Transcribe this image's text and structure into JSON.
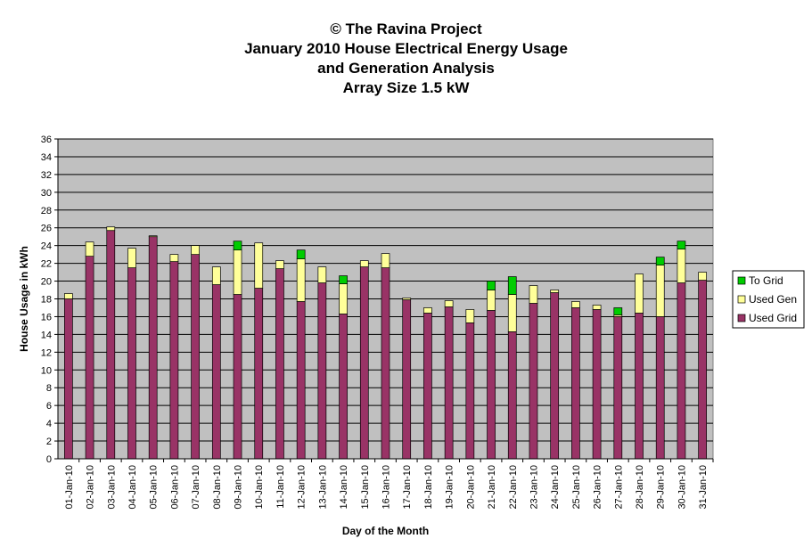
{
  "chart_data": {
    "type": "bar",
    "stacked": true,
    "title_lines": [
      "© The Ravina Project",
      "January 2010 House Electrical Energy Usage",
      "and Generation Analysis",
      "Array Size 1.5 kW"
    ],
    "xlabel": "Day of the Month",
    "ylabel": "House Usage in kWh",
    "ylim": [
      0,
      36
    ],
    "ytick_step": 2,
    "grid": true,
    "legend_position": "right",
    "categories": [
      "01-Jan-10",
      "02-Jan-10",
      "03-Jan-10",
      "04-Jan-10",
      "05-Jan-10",
      "06-Jan-10",
      "07-Jan-10",
      "08-Jan-10",
      "09-Jan-10",
      "10-Jan-10",
      "11-Jan-10",
      "12-Jan-10",
      "13-Jan-10",
      "14-Jan-10",
      "15-Jan-10",
      "16-Jan-10",
      "17-Jan-10",
      "18-Jan-10",
      "19-Jan-10",
      "20-Jan-10",
      "21-Jan-10",
      "22-Jan-10",
      "23-Jan-10",
      "24-Jan-10",
      "25-Jan-10",
      "26-Jan-10",
      "27-Jan-10",
      "28-Jan-10",
      "29-Jan-10",
      "30-Jan-10",
      "31-Jan-10"
    ],
    "series": [
      {
        "name": "Used Grid",
        "color": "#993366",
        "values": [
          18.0,
          22.8,
          25.7,
          21.5,
          25.0,
          22.2,
          23.0,
          19.6,
          18.5,
          19.2,
          21.4,
          17.7,
          19.8,
          16.3,
          21.6,
          21.5,
          17.9,
          16.4,
          17.1,
          15.3,
          16.7,
          14.3,
          17.5,
          18.7,
          17.0,
          16.8,
          16.0,
          16.4,
          16.0,
          19.8,
          20.1
        ]
      },
      {
        "name": "Used Gen",
        "color": "#FFFF99",
        "values": [
          0.6,
          1.6,
          0.4,
          2.2,
          0.1,
          0.8,
          1.0,
          2.0,
          5.0,
          5.1,
          0.9,
          4.8,
          1.8,
          3.4,
          0.7,
          1.6,
          0.2,
          0.6,
          0.7,
          1.5,
          2.3,
          4.2,
          2.0,
          0.3,
          0.7,
          0.5,
          0.2,
          4.4,
          5.8,
          3.8,
          0.9
        ]
      },
      {
        "name": "To Grid",
        "color": "#00CC00",
        "values": [
          0,
          0,
          0,
          0,
          0,
          0,
          0,
          0,
          1.0,
          0,
          0,
          1.0,
          0,
          0.9,
          0,
          0,
          0,
          0,
          0,
          0,
          1.0,
          2.0,
          0,
          0,
          0,
          0,
          0.8,
          0,
          0.9,
          0.9,
          0
        ]
      }
    ],
    "legend_order": [
      "To Grid",
      "Used Gen",
      "Used Grid"
    ],
    "plot_background": "#C0C0C0"
  }
}
